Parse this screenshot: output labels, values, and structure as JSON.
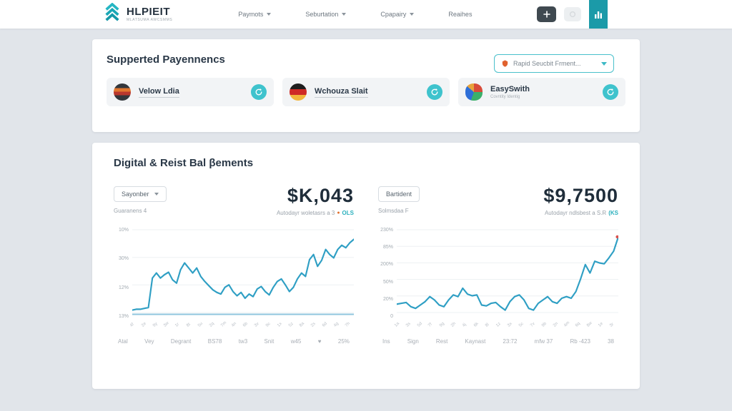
{
  "colors": {
    "accent_teal": "#2bb0bd",
    "line_blue": "#2f9fc4",
    "baseline_blue": "#8fc6de",
    "orange": "#e0762f",
    "end_marker_red": "#d9534f"
  },
  "topbar": {
    "logo_title": "HLPIEIT",
    "logo_subtitle": "MLATSUMA AWCSMMS",
    "nav": [
      {
        "label": "Paymots"
      },
      {
        "label": "Seburtation"
      },
      {
        "label": "Cpapairy"
      },
      {
        "label": "Reaihes"
      }
    ]
  },
  "supported": {
    "title": "Supperted Payennencs",
    "dropdown_label": "Rapid Seucbit Frment...",
    "cards": [
      {
        "label": "Velow Ldia"
      },
      {
        "label": "Wchouza Slait"
      },
      {
        "label": "EasySwith",
        "sublabel": "Covntity Identig"
      }
    ]
  },
  "payments": {
    "title": "Digital & Reist Bal βements",
    "panels": [
      {
        "dropdown": "Sayonber",
        "sub_left": "Guaranens 4",
        "value": "$K,043",
        "sub_value": "Autodayr woletasrs a 3",
        "sub_dot": "●",
        "sub_accent": "OLS",
        "footer": [
          "Atal",
          "Vey",
          "Degrant",
          "BS78",
          "tw3",
          "Snit",
          "w45",
          "♥",
          "25%"
        ]
      },
      {
        "dropdown": "Bartident",
        "sub_left": "Solmsdaa F",
        "value": "$9,7500",
        "sub_value": "Autodayr ndlsbest a S.R",
        "sub_dot": "",
        "sub_accent": "(KS",
        "footer": [
          "Ins",
          "Sign",
          "Rest",
          "Kaynast",
          "23:72",
          "mfw 37",
          "Rb -423",
          "38"
        ]
      }
    ]
  },
  "chart_data": [
    {
      "type": "line",
      "title": "$K,043",
      "xlabel": "",
      "ylabel": "",
      "ylim": [
        0,
        100
      ],
      "grid": true,
      "legend_position": "none",
      "ylabels": [
        "10%",
        "30%",
        "12%",
        "13%"
      ],
      "xlabels": [
        "4f",
        "2e",
        "9y",
        "3w",
        "1r",
        "8t",
        "5u",
        "2q",
        "7m",
        "4n",
        "6b",
        "3v",
        "9c",
        "1x",
        "5z",
        "8a",
        "2s",
        "6d",
        "4g",
        "7h"
      ],
      "series": [
        {
          "name": "main",
          "color": "#2f9fc4",
          "width": 2.2,
          "values": [
            8,
            9,
            9,
            10,
            11,
            46,
            52,
            46,
            50,
            53,
            44,
            40,
            56,
            64,
            58,
            52,
            58,
            48,
            42,
            37,
            32,
            29,
            27,
            35,
            38,
            30,
            25,
            29,
            22,
            27,
            24,
            33,
            36,
            30,
            26,
            35,
            42,
            45,
            38,
            30,
            35,
            45,
            52,
            48,
            68,
            74,
            60,
            67,
            80,
            74,
            70,
            80,
            85,
            82,
            88,
            92
          ]
        },
        {
          "name": "baseline",
          "color": "#8fc6de",
          "width": 2,
          "values": [
            3,
            3
          ]
        }
      ]
    },
    {
      "type": "line",
      "title": "$9,7500",
      "xlabel": "",
      "ylabel": "",
      "ylim": [
        0,
        100
      ],
      "grid": true,
      "legend_position": "none",
      "end_marker": "#d9534f",
      "ylabels": [
        "230%",
        "85%",
        "200%",
        "50%",
        "20%",
        "0"
      ],
      "xlabels": [
        "1a",
        "3s",
        "5d",
        "7f",
        "9g",
        "2h",
        "4j",
        "6k",
        "8l",
        "1z",
        "3x",
        "5c",
        "7v",
        "9b",
        "2n",
        "4m",
        "6q",
        "8w",
        "1e",
        "3r"
      ],
      "series": [
        {
          "name": "main",
          "color": "#2f9fc4",
          "width": 2.2,
          "values": [
            15,
            16,
            17,
            12,
            10,
            14,
            18,
            24,
            20,
            14,
            12,
            20,
            26,
            24,
            34,
            27,
            25,
            26,
            14,
            13,
            16,
            17,
            12,
            8,
            18,
            24,
            26,
            20,
            10,
            8,
            16,
            20,
            24,
            18,
            16,
            22,
            24,
            22,
            30,
            45,
            62,
            52,
            66,
            64,
            63,
            70,
            78,
            95
          ]
        }
      ]
    }
  ]
}
